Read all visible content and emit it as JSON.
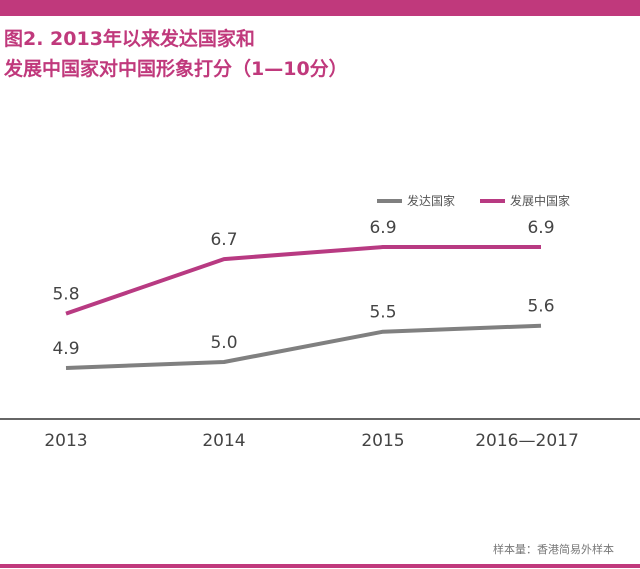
{
  "colors": {
    "accent": "#c0397c",
    "developed": "#808080",
    "developing": "#b83a82",
    "axis": "#333333",
    "text": "#444444"
  },
  "title_lines": [
    "图2. 2013年以来发达国家和",
    "发展中国家对中国形象打分（1—10分）"
  ],
  "source": "样本量：香港简易外样本",
  "chart_data": {
    "type": "line",
    "title": "图2. 2013年以来发达国家和发展中国家对中国形象打分（1—10分）",
    "categories": [
      "2013",
      "2014",
      "2015",
      "2016—2017"
    ],
    "series": [
      {
        "name": "发达国家",
        "color": "#808080",
        "values": [
          4.9,
          5.0,
          5.5,
          5.6
        ]
      },
      {
        "name": "发展中国家",
        "color": "#b83a82",
        "values": [
          5.8,
          6.7,
          6.9,
          6.9
        ]
      }
    ],
    "data_labels": true,
    "legend_position": "top-right",
    "grid": false
  }
}
